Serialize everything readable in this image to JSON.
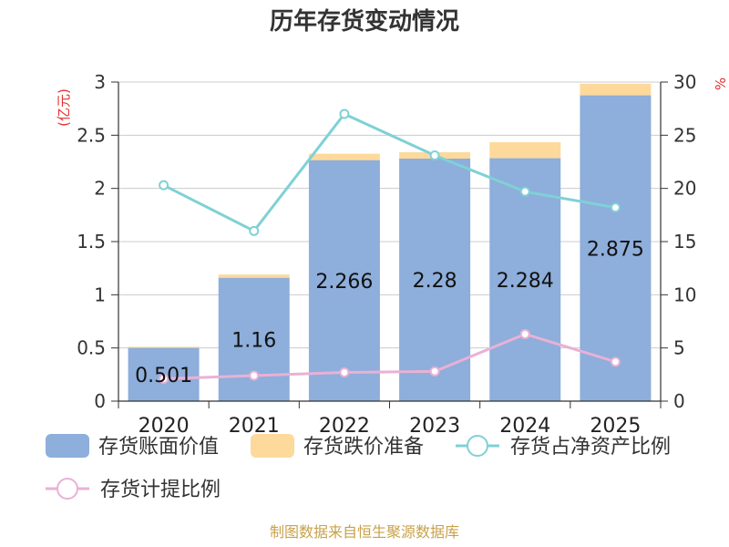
{
  "chart_data": {
    "type": "bar",
    "title": "历年存货变动情况",
    "categories": [
      "2020",
      "2021",
      "2022",
      "2023",
      "2024",
      "2025"
    ],
    "y_left": {
      "unit_label": "(亿元)",
      "range": [
        0,
        3
      ],
      "ticks": [
        "0",
        "0.5",
        "1",
        "1.5",
        "2",
        "2.5",
        "3"
      ]
    },
    "y_right": {
      "unit_label": "%",
      "range": [
        0,
        30
      ],
      "ticks": [
        "0",
        "5",
        "10",
        "15",
        "20",
        "25",
        "30"
      ]
    },
    "series": [
      {
        "name": "存货账面价值",
        "kind": "bar",
        "axis": "left",
        "color": "#8eaedb",
        "values": [
          0.501,
          1.16,
          2.266,
          2.28,
          2.284,
          2.875
        ],
        "labels": [
          "0.501",
          "1.16",
          "2.266",
          "2.28",
          "2.284",
          "2.875"
        ]
      },
      {
        "name": "存货跌价准备",
        "kind": "bar-stacked",
        "axis": "left",
        "color": "#fdd99b",
        "values": [
          0.01,
          0.03,
          0.06,
          0.06,
          0.15,
          0.11
        ]
      },
      {
        "name": "存货占净资产比例",
        "kind": "line",
        "axis": "right",
        "color": "#7fd1d6",
        "values": [
          20.3,
          16.0,
          27.0,
          23.1,
          19.7,
          18.2
        ]
      },
      {
        "name": "存货计提比例",
        "kind": "line",
        "axis": "right",
        "color": "#e9b1d6",
        "values": [
          2.1,
          2.4,
          2.7,
          2.8,
          6.3,
          3.7
        ]
      }
    ],
    "grid": true,
    "legend_position": "bottom"
  },
  "footer": {
    "source": "制图数据来自恒生聚源数据库"
  }
}
